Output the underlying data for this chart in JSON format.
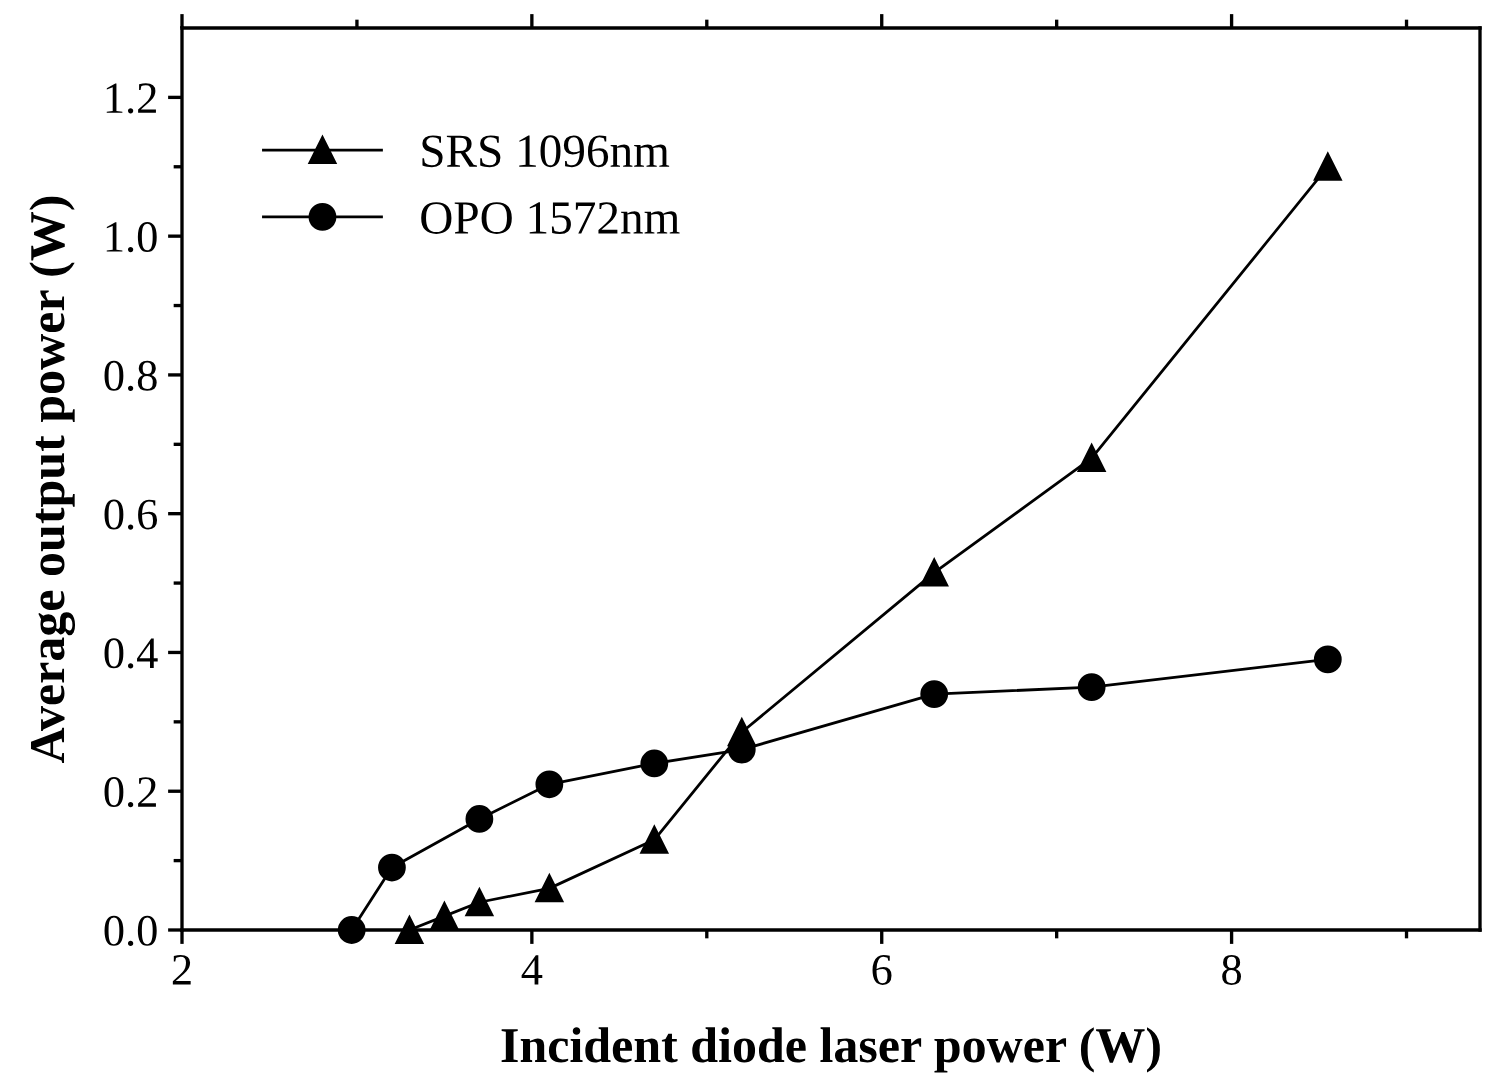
{
  "chart_data": {
    "type": "line",
    "xlabel": "Incident diode laser power (W)",
    "ylabel": "Average output power (W)",
    "xlim": [
      2,
      9.42
    ],
    "ylim": [
      0,
      1.3
    ],
    "xticks": [
      2,
      {
        "value": 3,
        "label": null
      },
      4,
      {
        "value": 5,
        "label": null
      },
      6,
      {
        "value": 7,
        "label": null
      },
      8,
      {
        "value": 9,
        "label": null
      }
    ],
    "yticks": [
      "0.0",
      {
        "value": 0.1,
        "label": null
      },
      0.2,
      {
        "value": 0.3,
        "label": null
      },
      0.4,
      {
        "value": 0.5,
        "label": null
      },
      0.6,
      {
        "value": 0.7,
        "label": null
      },
      0.8,
      {
        "value": 0.9,
        "label": null
      },
      "1.0",
      {
        "value": 1.1,
        "label": null
      },
      1.2
    ],
    "legend": "top left",
    "grid": false,
    "line_style": "solid",
    "series": [
      {
        "name": "SRS 1096nm",
        "color": "#000000",
        "marker": "triangle",
        "x": [
          3.3,
          3.5,
          3.7,
          4.1,
          4.7,
          5.2,
          6.3,
          7.2,
          8.55
        ],
        "values": [
          0,
          0.02,
          0.04,
          0.06,
          0.13,
          0.285,
          0.515,
          0.68,
          1.1
        ]
      },
      {
        "name": "OPO 1572nm",
        "color": "#000000",
        "marker": "circle",
        "x": [
          2.97,
          3.2,
          3.7,
          4.1,
          4.7,
          5.2,
          6.3,
          7.2,
          8.55
        ],
        "values": [
          0,
          0.09,
          0.16,
          0.21,
          0.24,
          0.26,
          0.34,
          0.35,
          0.39
        ]
      }
    ]
  }
}
